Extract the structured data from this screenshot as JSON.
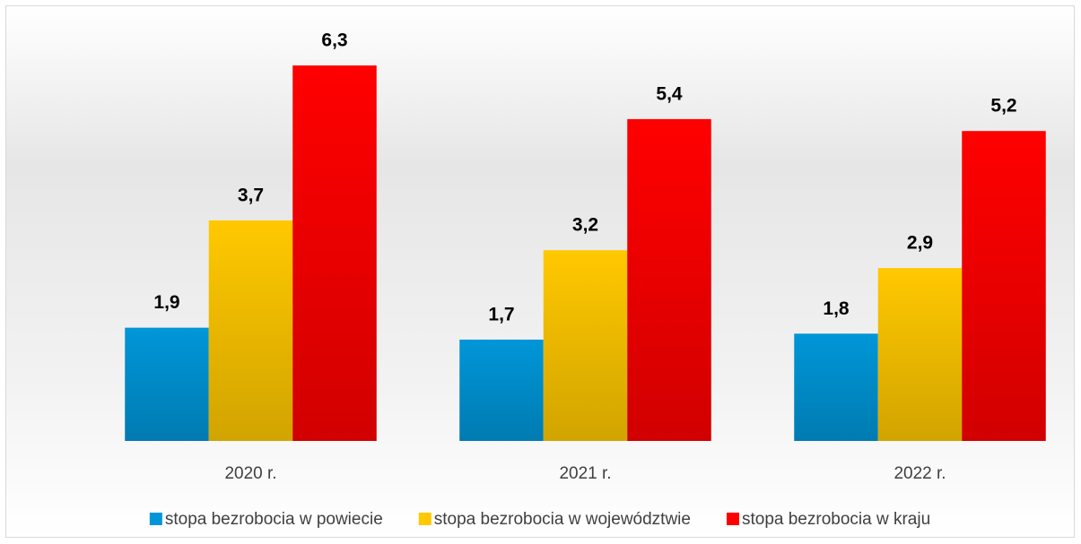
{
  "chart_data": {
    "type": "bar",
    "categories": [
      "2020 r.",
      "2021 r.",
      "2022 r."
    ],
    "series": [
      {
        "name": "stopa bezrobocia w powiecie",
        "color": "#0096d8",
        "values": [
          1.9,
          1.7,
          1.8
        ],
        "value_labels": [
          "1,9",
          "1,7",
          "1,8"
        ]
      },
      {
        "name": "stopa bezrobocia w województwie",
        "color": "#ffc800",
        "values": [
          3.7,
          3.2,
          2.9
        ],
        "value_labels": [
          "3,7",
          "3,2",
          "2,9"
        ]
      },
      {
        "name": "stopa bezrobocia w kraju",
        "color": "#ff0000",
        "values": [
          6.3,
          5.4,
          5.2
        ],
        "value_labels": [
          "6,3",
          "5,4",
          "5,2"
        ]
      }
    ],
    "ylim": [
      0,
      7
    ],
    "legend": "bottom"
  }
}
